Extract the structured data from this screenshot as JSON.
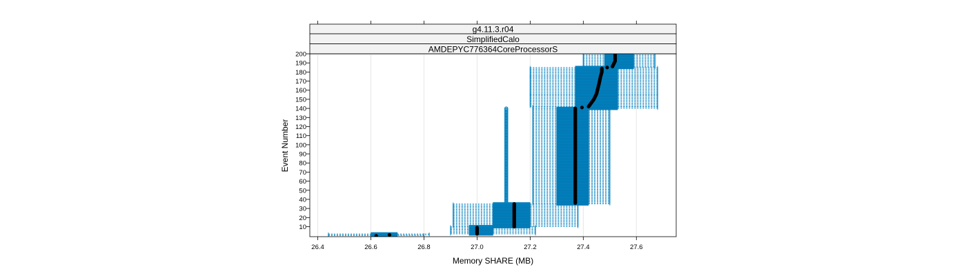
{
  "chart_data": {
    "type": "box",
    "orientation": "horizontal",
    "strips": [
      "g4.11.3.r04",
      "SimplifiedCalo",
      "AMDEPYC776364CoreProcessorS"
    ],
    "xlabel": "Memory SHARE (MB)",
    "ylabel": "Event Number",
    "xlim": [
      26.37,
      27.75
    ],
    "ylim": [
      -1,
      200
    ],
    "x_ticks": [
      26.4,
      26.6,
      26.8,
      27.0,
      27.2,
      27.4,
      27.6
    ],
    "x_tick_labels": [
      "26.4",
      "26.6",
      "26.8",
      "27.0",
      "27.2",
      "27.4",
      "27.6"
    ],
    "y_ticks": [
      10,
      20,
      30,
      40,
      50,
      60,
      70,
      80,
      90,
      100,
      110,
      120,
      130,
      140,
      150,
      160,
      170,
      180,
      190,
      200
    ],
    "y_tick_labels": [
      "10",
      "20",
      "30",
      "40",
      "50",
      "60",
      "70",
      "80",
      "90",
      "100",
      "110",
      "120",
      "130",
      "140",
      "150",
      "160",
      "170",
      "180",
      "190",
      "200"
    ],
    "grid": true,
    "colors": {
      "box": "#0080bf",
      "median": "#000000",
      "strip_bg": "#f2f2f2",
      "grid": "#e6e6e6"
    },
    "bands": [
      {
        "events": [
          0,
          1
        ],
        "whisker_low": 26.44,
        "q1": 26.62,
        "median": 26.63,
        "q3": 26.66,
        "whisker_high": 26.8
      },
      {
        "events": [
          1,
          2
        ],
        "whisker_low": 26.44,
        "q1": 26.6,
        "median": 26.67,
        "q3": 26.7,
        "whisker_high": 26.82
      },
      {
        "events": [
          2,
          10
        ],
        "whisker_low": 26.9,
        "q1": 26.97,
        "median": 27.0,
        "q3": 27.06,
        "whisker_high": 27.22
      },
      {
        "events": [
          10,
          35
        ],
        "whisker_low": 26.91,
        "q1": 27.06,
        "median": 27.14,
        "q3": 27.2,
        "whisker_high": 27.38
      },
      {
        "events": [
          35,
          140
        ],
        "whisker_low": 27.21,
        "q1": 27.3,
        "median": 27.37,
        "q3": 27.42,
        "whisker_high": 27.5
      },
      {
        "events": [
          140,
          142
        ],
        "whisker_low": 27.21,
        "q1": 27.37,
        "median": 27.42,
        "q3": 27.53,
        "whisker_high": 27.68
      },
      {
        "events": [
          142,
          155
        ],
        "whisker_low": 27.2,
        "q1": 27.37,
        "median": 27.44,
        "q3": 27.53,
        "whisker_high": 27.68
      },
      {
        "events": [
          155,
          175
        ],
        "whisker_low": 27.2,
        "q1": 27.37,
        "median": 27.46,
        "q3": 27.53,
        "whisker_high": 27.68
      },
      {
        "events": [
          175,
          185
        ],
        "whisker_low": 27.2,
        "q1": 27.37,
        "median": 27.47,
        "q3": 27.53,
        "whisker_high": 27.68
      },
      {
        "events": [
          185,
          200
        ],
        "whisker_low": 27.4,
        "q1": 27.48,
        "median": 27.52,
        "q3": 27.59,
        "whisker_high": 27.67
      }
    ],
    "outlier_columns": [
      {
        "x": 27.11,
        "events": [
          36,
          140
        ]
      }
    ],
    "median_path": [
      [
        26.62,
        0
      ],
      [
        26.67,
        1
      ],
      [
        27.0,
        2
      ],
      [
        27.0,
        9
      ],
      [
        27.14,
        10
      ],
      [
        27.14,
        35
      ],
      [
        27.37,
        36
      ],
      [
        27.37,
        140
      ],
      [
        27.42,
        142
      ],
      [
        27.43,
        146
      ],
      [
        27.44,
        150
      ],
      [
        27.45,
        156
      ],
      [
        27.455,
        162
      ],
      [
        27.46,
        168
      ],
      [
        27.465,
        175
      ],
      [
        27.47,
        180
      ],
      [
        27.47,
        184
      ],
      [
        27.51,
        186
      ],
      [
        27.52,
        192
      ],
      [
        27.52,
        200
      ]
    ]
  }
}
